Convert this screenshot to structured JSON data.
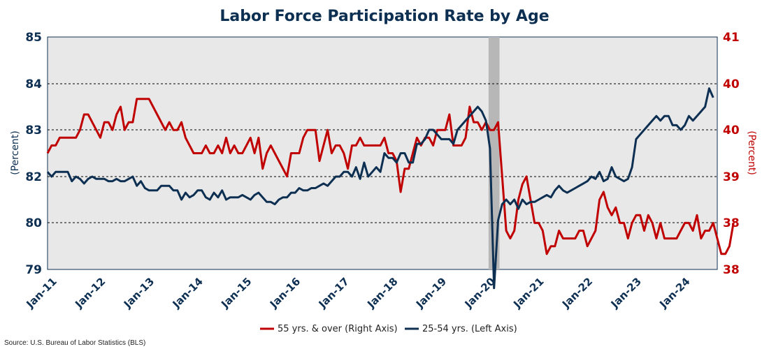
{
  "chart_data": {
    "type": "line",
    "title": "Labor Force Participation Rate by Age",
    "left_axis_label": "(Percent)",
    "right_axis_label": "(Percent)",
    "left_ticks": [
      "85",
      "84",
      "83",
      "82",
      "80",
      "79"
    ],
    "right_ticks": [
      "41",
      "40",
      "40",
      "39",
      "38",
      "38"
    ],
    "x_ticks": [
      "Jan-11",
      "Jan-12",
      "Jan-13",
      "Jan-14",
      "Jan-15",
      "Jan-16",
      "Jan-17",
      "Jan-18",
      "Jan-19",
      "Jan-20",
      "Jan-21",
      "Jan-22",
      "Jan-23",
      "Jan-24"
    ],
    "x_range": [
      "Jan-11",
      "Oct-24"
    ],
    "recession_shading": {
      "from": "Feb-20",
      "to": "Apr-20",
      "color": "#b7b7b7"
    },
    "grid": "horizontal dashed",
    "legend_position": "bottom",
    "series": [
      {
        "name": "55 yrs. & over (Right Axis)",
        "axis": "right",
        "color": "#c00000",
        "values": [
          39.5,
          39.6,
          39.6,
          39.7,
          39.7,
          39.7,
          39.7,
          39.7,
          39.8,
          40.0,
          40.0,
          39.9,
          39.8,
          39.7,
          39.9,
          39.9,
          39.8,
          40.0,
          40.1,
          39.8,
          39.9,
          39.9,
          40.2,
          40.2,
          40.2,
          40.2,
          40.1,
          40.0,
          39.9,
          39.8,
          39.9,
          39.8,
          39.8,
          39.9,
          39.7,
          39.6,
          39.5,
          39.5,
          39.5,
          39.6,
          39.5,
          39.5,
          39.6,
          39.5,
          39.7,
          39.5,
          39.6,
          39.5,
          39.5,
          39.6,
          39.7,
          39.5,
          39.7,
          39.3,
          39.5,
          39.6,
          39.5,
          39.4,
          39.3,
          39.2,
          39.5,
          39.5,
          39.5,
          39.7,
          39.8,
          39.8,
          39.8,
          39.4,
          39.6,
          39.8,
          39.5,
          39.6,
          39.6,
          39.5,
          39.3,
          39.6,
          39.6,
          39.7,
          39.6,
          39.6,
          39.6,
          39.6,
          39.6,
          39.7,
          39.5,
          39.5,
          39.4,
          39.0,
          39.3,
          39.3,
          39.5,
          39.7,
          39.6,
          39.7,
          39.7,
          39.6,
          39.8,
          39.8,
          39.8,
          40.0,
          39.6,
          39.6,
          39.6,
          39.7,
          40.1,
          39.9,
          39.9,
          39.8,
          39.9,
          39.8,
          39.8,
          39.9,
          39.2,
          38.5,
          38.4,
          38.5,
          38.9,
          39.1,
          39.2,
          38.9,
          38.6,
          38.6,
          38.5,
          38.2,
          38.3,
          38.3,
          38.5,
          38.4,
          38.4,
          38.4,
          38.4,
          38.5,
          38.5,
          38.3,
          38.4,
          38.5,
          38.9,
          39.0,
          38.8,
          38.7,
          38.8,
          38.6,
          38.6,
          38.4,
          38.6,
          38.7,
          38.7,
          38.5,
          38.7,
          38.6,
          38.4,
          38.6,
          38.4,
          38.4,
          38.4,
          38.4,
          38.5,
          38.6,
          38.6,
          38.5,
          38.7,
          38.4,
          38.5,
          38.5,
          38.6,
          38.4,
          38.2,
          38.2,
          38.3,
          38.6
        ]
      },
      {
        "name": "25-54 yrs. (Left Axis)",
        "axis": "left",
        "color": "#0d2f52",
        "values": [
          82.1,
          82.0,
          82.1,
          82.1,
          82.1,
          82.1,
          81.8,
          82.0,
          81.9,
          81.7,
          81.9,
          82.0,
          81.9,
          81.9,
          81.9,
          81.8,
          81.8,
          81.9,
          81.8,
          81.8,
          81.9,
          82.0,
          81.6,
          81.8,
          81.5,
          81.4,
          81.4,
          81.4,
          81.6,
          81.6,
          81.6,
          81.4,
          81.4,
          81.0,
          81.3,
          81.1,
          81.2,
          81.4,
          81.4,
          81.1,
          81.0,
          81.3,
          81.1,
          81.4,
          81.0,
          81.1,
          81.1,
          81.1,
          81.2,
          81.1,
          81.0,
          81.2,
          81.3,
          81.1,
          80.9,
          80.9,
          80.8,
          81.0,
          81.1,
          81.1,
          81.3,
          81.3,
          81.5,
          81.4,
          81.4,
          81.5,
          81.5,
          81.6,
          81.7,
          81.6,
          81.8,
          82.0,
          82.0,
          82.1,
          82.1,
          82.0,
          82.2,
          81.9,
          82.3,
          82.0,
          82.1,
          82.2,
          82.1,
          82.5,
          82.4,
          82.4,
          82.3,
          82.5,
          82.5,
          82.3,
          82.3,
          82.7,
          82.7,
          82.8,
          83.0,
          83.0,
          82.9,
          82.8,
          82.8,
          82.8,
          82.7,
          83.0,
          83.1,
          83.2,
          83.3,
          83.4,
          83.5,
          83.4,
          83.2,
          82.6,
          78.6,
          80.1,
          80.8,
          81.0,
          80.8,
          81.0,
          80.6,
          81.0,
          80.8,
          80.9,
          80.9,
          81.0,
          81.1,
          81.2,
          81.1,
          81.4,
          81.6,
          81.4,
          81.3,
          81.4,
          81.5,
          81.6,
          81.7,
          81.8,
          82.0,
          81.9,
          82.1,
          81.8,
          81.9,
          82.2,
          82.0,
          81.9,
          81.8,
          81.9,
          82.2,
          82.8,
          82.9,
          83.0,
          83.1,
          83.2,
          83.3,
          83.2,
          83.3,
          83.3,
          83.1,
          83.1,
          83.0,
          83.1,
          83.3,
          83.2,
          83.3,
          83.4,
          83.5,
          83.9,
          83.7
        ]
      }
    ]
  },
  "legend": {
    "items": [
      {
        "label": "55 yrs. & over (Right Axis)",
        "color": "#c00000"
      },
      {
        "label": "25-54 yrs. (Left Axis)",
        "color": "#0d2f52"
      }
    ]
  },
  "source": "Source: U.S. Bureau of Labor Statistics (BLS)"
}
